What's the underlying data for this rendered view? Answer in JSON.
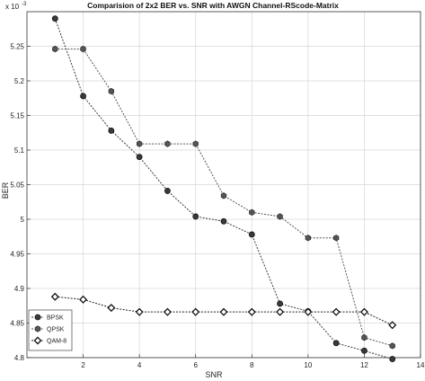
{
  "chart_data": {
    "type": "line",
    "title": "Comparision of 2x2 BER vs. SNR  with AWGN Channel-RScode-Matrix",
    "xlabel": "SNR",
    "ylabel": "BER",
    "y_exponent_label": "x 10",
    "y_exponent_power": "-3",
    "xlim": [
      0,
      14
    ],
    "ylim": [
      4.8,
      5.3
    ],
    "x_ticks": [
      2,
      4,
      6,
      8,
      10,
      12,
      14
    ],
    "x_tick_labels": [
      "2",
      "4",
      "6",
      "8",
      "10",
      "12",
      "14"
    ],
    "y_ticks": [
      4.8,
      4.85,
      4.9,
      4.95,
      5,
      5.05,
      5.1,
      5.15,
      5.2,
      5.25
    ],
    "y_tick_labels": [
      "4.8",
      "4.85",
      "4.9",
      "4.95",
      "5",
      "5.05",
      "5.1",
      "5.15",
      "5.2",
      "5.25"
    ],
    "grid": true,
    "legend_position": "bottom-left",
    "x": [
      1,
      2,
      3,
      4,
      5,
      6,
      7,
      8,
      9,
      10,
      11,
      12,
      13
    ],
    "series": [
      {
        "name": "BPSK",
        "color": "#3a3a3a",
        "marker": "circle",
        "values": [
          5.29,
          5.178,
          5.128,
          5.09,
          5.041,
          5.004,
          4.997,
          4.978,
          4.878,
          4.867,
          4.821,
          4.81,
          4.798
        ]
      },
      {
        "name": "QPSK",
        "color": "#555555",
        "marker": "hexagon",
        "values": [
          5.246,
          5.246,
          5.185,
          5.109,
          5.109,
          5.109,
          5.034,
          5.01,
          5.004,
          4.973,
          4.973,
          4.829,
          4.817
        ]
      },
      {
        "name": "QAM-8",
        "color": "#222222",
        "marker": "diamond",
        "values": [
          4.888,
          4.884,
          4.872,
          4.866,
          4.866,
          4.866,
          4.866,
          4.866,
          4.866,
          4.866,
          4.866,
          4.866,
          4.847
        ]
      }
    ]
  }
}
